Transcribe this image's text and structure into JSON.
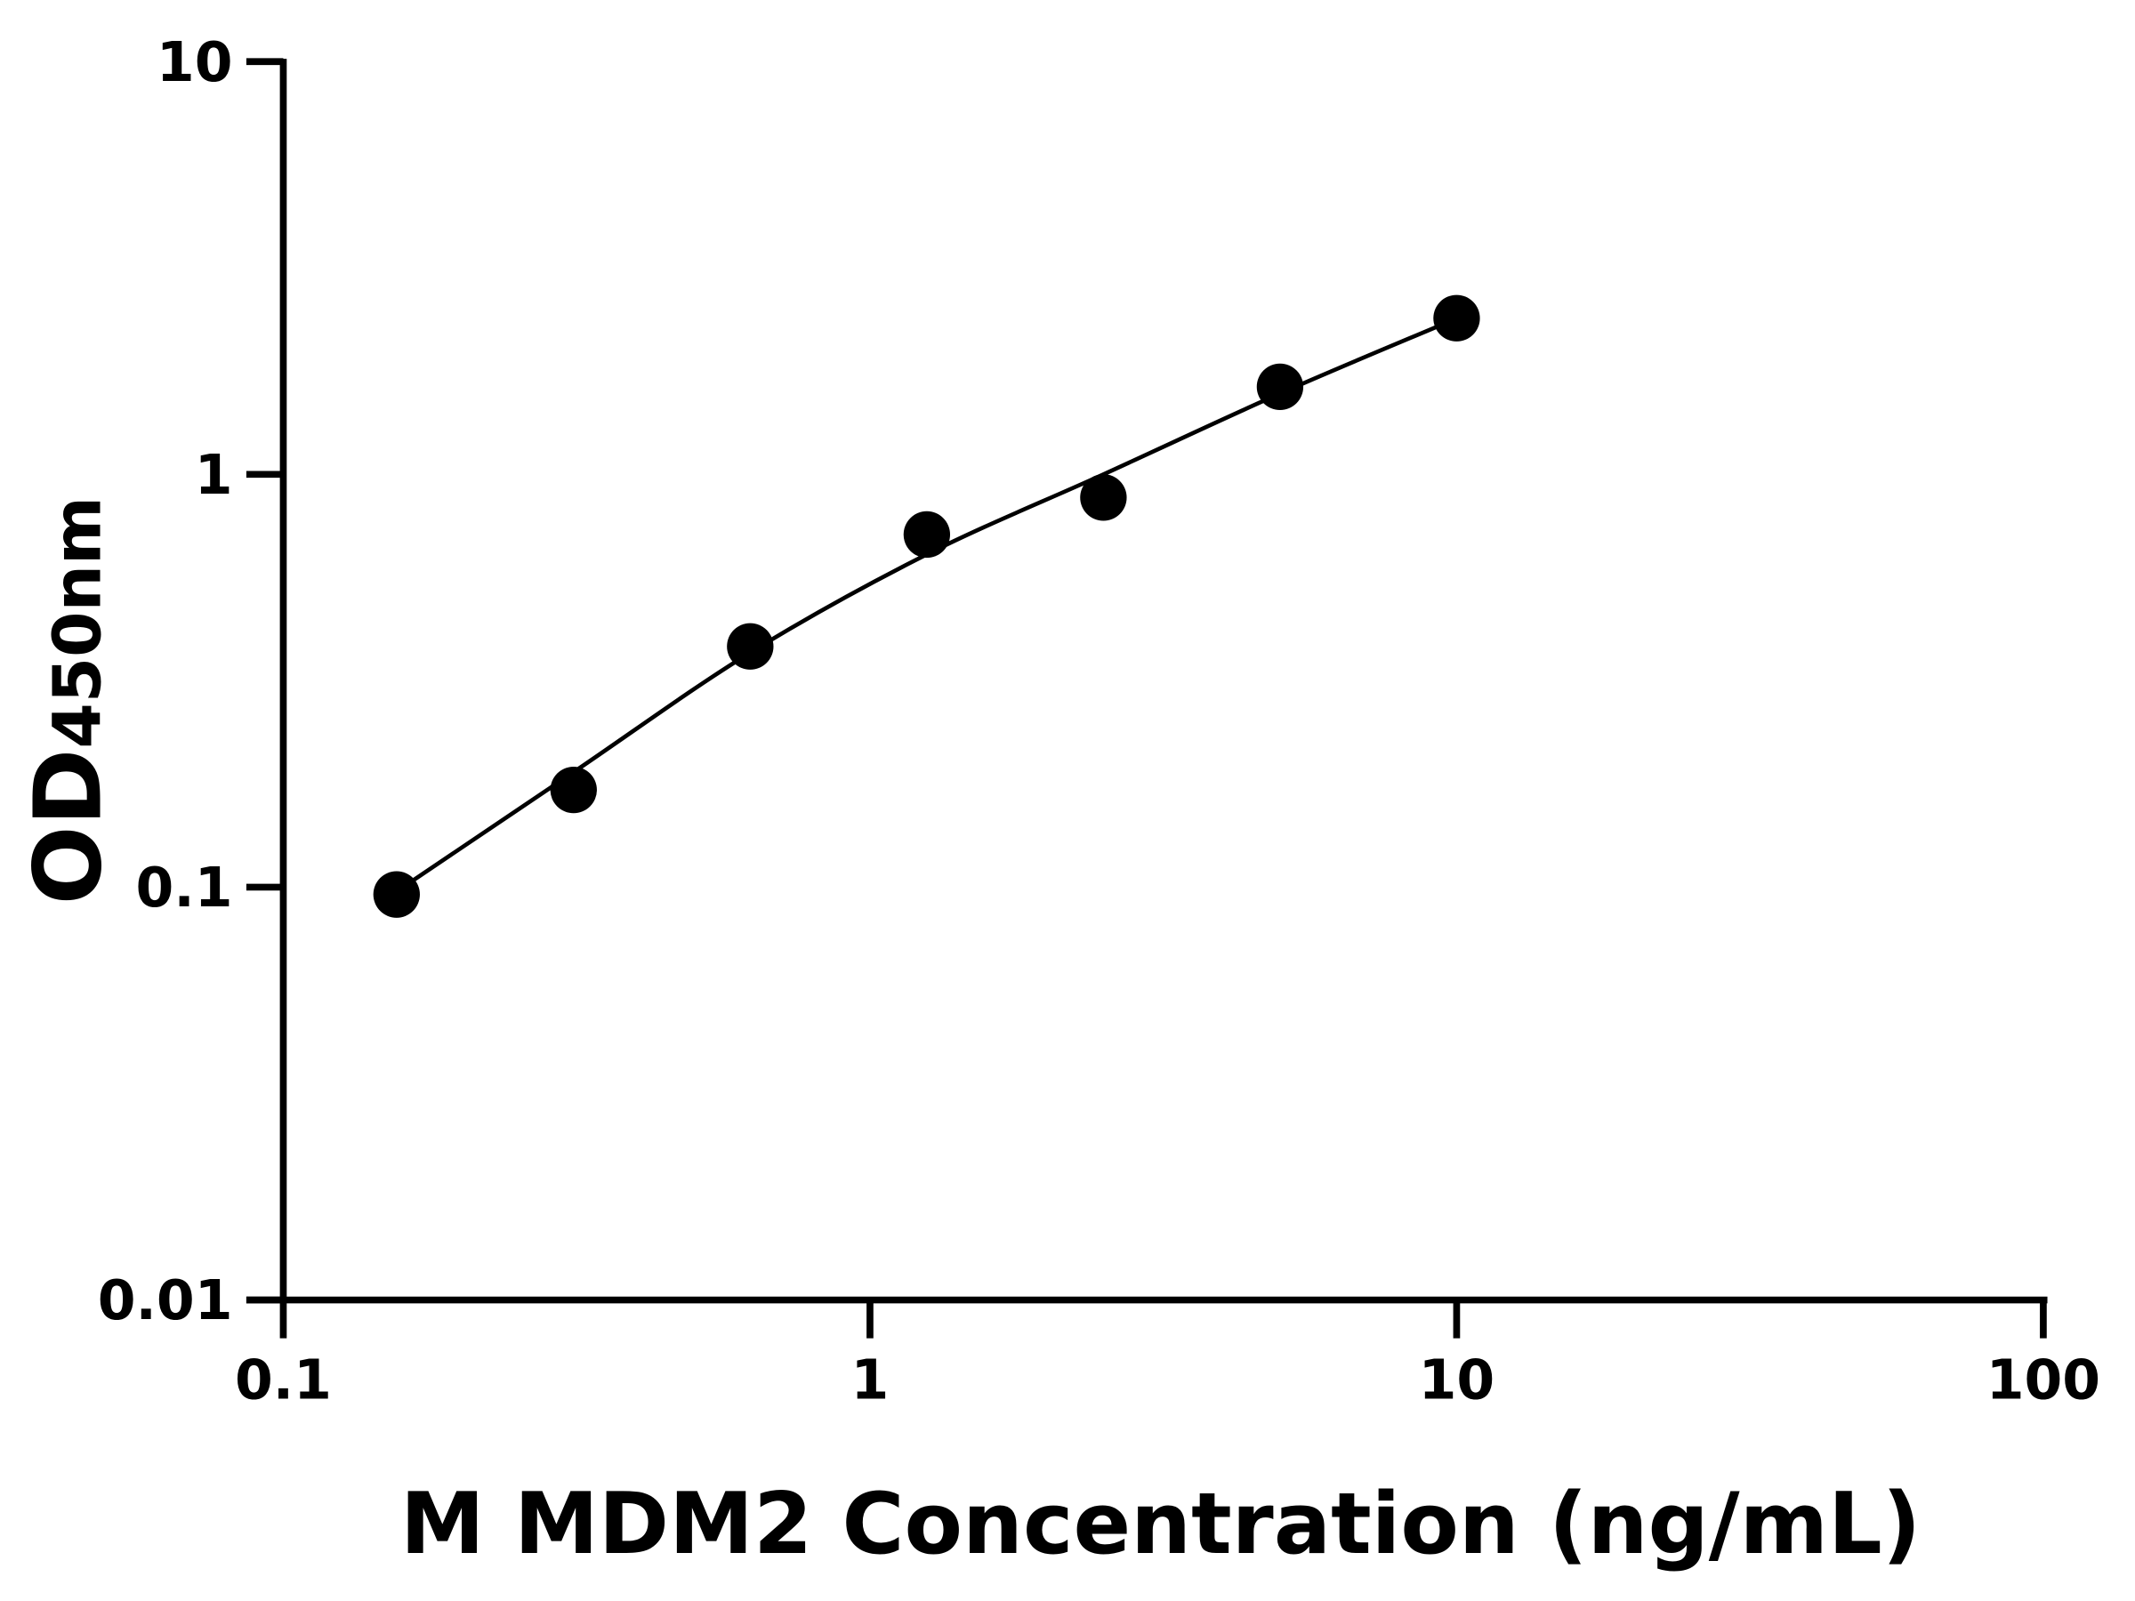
{
  "chart_data": {
    "type": "scatter",
    "title": "",
    "xlabel": "M MDM2 Concentration (ng/mL)",
    "ylabel_main": "OD",
    "ylabel_sub": "450nm",
    "x_scale": "log",
    "y_scale": "log",
    "xlim": [
      0.1,
      100
    ],
    "ylim": [
      0.01,
      10
    ],
    "x_ticks": [
      "0.1",
      "1",
      "10",
      "100"
    ],
    "y_ticks": [
      "0.01",
      "0.1",
      "1",
      "10"
    ],
    "grid": false,
    "series": [
      {
        "points": [
          {
            "x": 0.156,
            "y": 0.096
          },
          {
            "x": 0.3125,
            "y": 0.172
          },
          {
            "x": 0.625,
            "y": 0.383
          },
          {
            "x": 1.25,
            "y": 0.715
          },
          {
            "x": 2.5,
            "y": 0.879
          },
          {
            "x": 5,
            "y": 1.63
          },
          {
            "x": 10,
            "y": 2.39
          }
        ],
        "fit_curve": [
          {
            "x": 0.16,
            "y": 0.1
          },
          {
            "x": 0.3125,
            "y": 0.19
          },
          {
            "x": 0.625,
            "y": 0.37
          },
          {
            "x": 1.25,
            "y": 0.64
          },
          {
            "x": 2.5,
            "y": 1.0
          },
          {
            "x": 5,
            "y": 1.57
          },
          {
            "x": 9.4,
            "y": 2.3
          }
        ]
      }
    ],
    "colors": {
      "marker": "#000000",
      "line": "#000000",
      "axis": "#000000"
    }
  }
}
